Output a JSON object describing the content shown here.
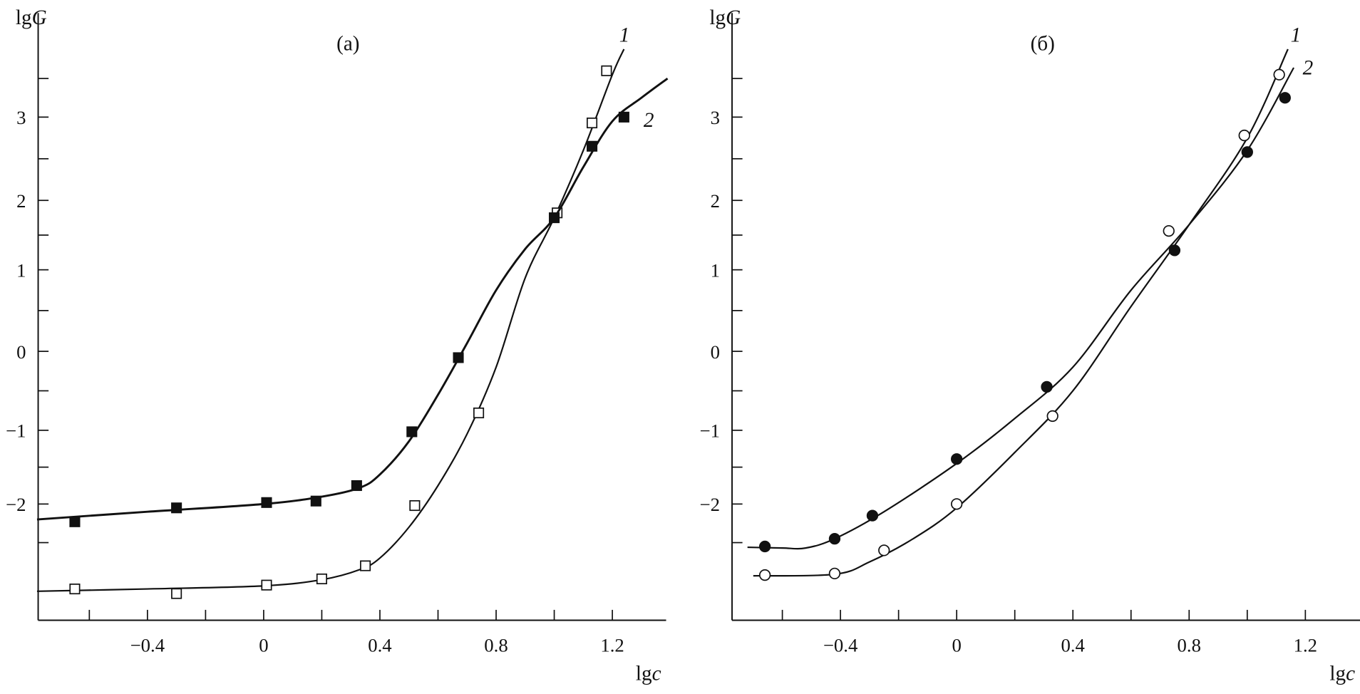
{
  "chart_data": [
    {
      "type": "scatter",
      "panel_label": "(a)",
      "xlabel": "lgc",
      "ylabel": "lgG",
      "xlim": [
        -0.78,
        1.39
      ],
      "ylim": [
        -3.5,
        4.35
      ],
      "xticks": [
        "-0.4",
        "0",
        "0.4",
        "0.8",
        "1.2"
      ],
      "xtick_values": [
        -0.4,
        0,
        0.4,
        0.8,
        1.2
      ],
      "yticks": [
        "3",
        "2",
        "1",
        "0",
        "-1",
        "-2"
      ],
      "ytick_values": [
        3,
        2,
        1,
        0,
        -1,
        -2
      ],
      "series": [
        {
          "name": "1",
          "marker": "open-square",
          "points": [
            [
              -0.65,
              -3.1
            ],
            [
              -0.3,
              -3.16
            ],
            [
              0.01,
              -3.05
            ],
            [
              0.2,
              -2.97
            ],
            [
              0.35,
              -2.8
            ],
            [
              0.52,
              -2.02
            ],
            [
              0.74,
              -0.78
            ],
            [
              1.01,
              1.82
            ],
            [
              1.13,
              2.93
            ],
            [
              1.18,
              3.6
            ]
          ],
          "curve": [
            [
              -0.78,
              -3.13
            ],
            [
              -0.4,
              -3.1
            ],
            [
              0,
              -3.06
            ],
            [
              0.2,
              -2.98
            ],
            [
              0.33,
              -2.85
            ],
            [
              0.4,
              -2.7
            ],
            [
              0.5,
              -2.3
            ],
            [
              0.6,
              -1.75
            ],
            [
              0.7,
              -1.05
            ],
            [
              0.8,
              -0.2
            ],
            [
              0.9,
              0.9
            ],
            [
              1.0,
              1.75
            ],
            [
              1.1,
              2.6
            ],
            [
              1.2,
              3.55
            ],
            [
              1.24,
              3.88
            ]
          ]
        },
        {
          "name": "2",
          "marker": "filled-square",
          "points": [
            [
              -0.65,
              -2.23
            ],
            [
              -0.3,
              -2.05
            ],
            [
              0.01,
              -1.98
            ],
            [
              0.18,
              -1.96
            ],
            [
              0.32,
              -1.75
            ],
            [
              0.51,
              -1.02
            ],
            [
              0.67,
              -0.08
            ],
            [
              1.0,
              1.75
            ],
            [
              1.13,
              2.65
            ],
            [
              1.24,
              3.0
            ]
          ],
          "curve": [
            [
              -0.78,
              -2.2
            ],
            [
              -0.4,
              -2.1
            ],
            [
              0,
              -2.0
            ],
            [
              0.2,
              -1.9
            ],
            [
              0.33,
              -1.78
            ],
            [
              0.4,
              -1.6
            ],
            [
              0.5,
              -1.15
            ],
            [
              0.6,
              -0.55
            ],
            [
              0.7,
              0.1
            ],
            [
              0.8,
              0.75
            ],
            [
              0.9,
              1.3
            ],
            [
              1.0,
              1.75
            ],
            [
              1.1,
              2.4
            ],
            [
              1.2,
              2.95
            ],
            [
              1.3,
              3.25
            ],
            [
              1.39,
              3.5
            ]
          ]
        }
      ]
    },
    {
      "type": "scatter",
      "panel_label": "(б)",
      "xlabel": "lgc",
      "ylabel": "lgG",
      "xlim": [
        -0.78,
        1.39
      ],
      "ylim": [
        -3.5,
        4.35
      ],
      "xticks": [
        "-0.4",
        "0",
        "0.4",
        "0.8",
        "1.2"
      ],
      "xtick_values": [
        -0.4,
        0,
        0.4,
        0.8,
        1.2
      ],
      "yticks": [
        "3",
        "2",
        "1",
        "0",
        "-1",
        "-2"
      ],
      "ytick_values": [
        3,
        2,
        1,
        0,
        -1,
        -2
      ],
      "series": [
        {
          "name": "1",
          "marker": "open-circle",
          "points": [
            [
              -0.66,
              -2.92
            ],
            [
              -0.42,
              -2.9
            ],
            [
              -0.25,
              -2.6
            ],
            [
              0,
              -2.0
            ],
            [
              0.33,
              -0.82
            ],
            [
              0.73,
              1.56
            ],
            [
              0.99,
              2.78
            ],
            [
              1.11,
              3.55
            ]
          ],
          "curve": [
            [
              -0.7,
              -2.93
            ],
            [
              -0.42,
              -2.91
            ],
            [
              -0.3,
              -2.75
            ],
            [
              -0.15,
              -2.45
            ],
            [
              0,
              -2.05
            ],
            [
              0.2,
              -1.3
            ],
            [
              0.4,
              -0.5
            ],
            [
              0.6,
              0.55
            ],
            [
              0.8,
              1.65
            ],
            [
              1.0,
              2.75
            ],
            [
              1.14,
              3.88
            ]
          ]
        },
        {
          "name": "2",
          "marker": "filled-circle",
          "points": [
            [
              -0.66,
              -2.55
            ],
            [
              -0.42,
              -2.45
            ],
            [
              -0.29,
              -2.15
            ],
            [
              0,
              -1.39
            ],
            [
              0.31,
              -0.45
            ],
            [
              0.75,
              1.28
            ],
            [
              1.0,
              2.58
            ],
            [
              1.13,
              3.25
            ]
          ],
          "curve": [
            [
              -0.72,
              -2.56
            ],
            [
              -0.6,
              -2.57
            ],
            [
              -0.52,
              -2.57
            ],
            [
              -0.42,
              -2.45
            ],
            [
              -0.25,
              -2.1
            ],
            [
              0,
              -1.45
            ],
            [
              0.2,
              -0.85
            ],
            [
              0.4,
              -0.2
            ],
            [
              0.6,
              0.75
            ],
            [
              0.8,
              1.65
            ],
            [
              1.0,
              2.6
            ],
            [
              1.16,
              3.64
            ]
          ]
        }
      ]
    }
  ]
}
